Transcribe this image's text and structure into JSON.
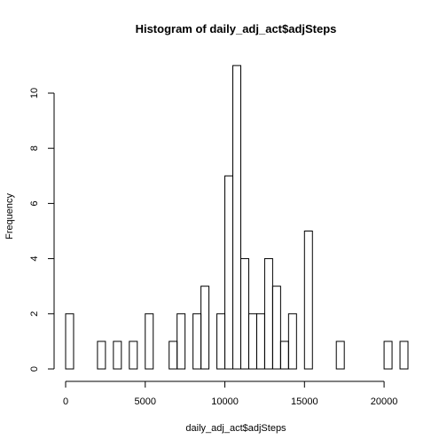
{
  "chart_data": {
    "type": "bar",
    "title": "Histogram of daily_adj_act$adjSteps",
    "xlabel": "daily_adj_act$adjSteps",
    "ylabel": "Frequency",
    "bin_width": 500,
    "bins_start": 0,
    "values": [
      2,
      0,
      0,
      0,
      1,
      0,
      1,
      0,
      1,
      0,
      2,
      0,
      0,
      1,
      2,
      0,
      2,
      3,
      0,
      2,
      7,
      11,
      4,
      2,
      2,
      4,
      3,
      1,
      2,
      0,
      5,
      0,
      0,
      0,
      1,
      0,
      0,
      0,
      0,
      0,
      1,
      0,
      1
    ],
    "xlim": [
      0,
      21500
    ],
    "ylim": [
      0,
      11
    ],
    "x_ticks": [
      0,
      5000,
      10000,
      15000,
      20000
    ],
    "y_ticks": [
      0,
      2,
      4,
      6,
      8,
      10
    ]
  }
}
